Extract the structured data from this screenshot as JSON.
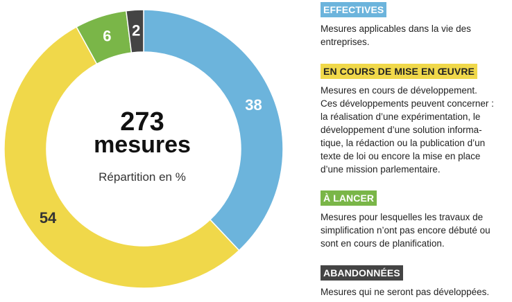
{
  "colors": {
    "effectives": "#6cb4dc",
    "en_cours": "#f0d84a",
    "a_lancer": "#7ab648",
    "abandonnees": "#444444"
  },
  "chart_data": {
    "type": "pie",
    "donut": true,
    "total": "273",
    "total_unit": "mesures",
    "caption": "Répartition en %",
    "slices": [
      {
        "label": "EFFECTIVES",
        "value": 38,
        "color": "#6cb4dc",
        "text_color": "#ffffff"
      },
      {
        "label": "EN COURS DE MISE EN ŒUVRE",
        "value": 54,
        "color": "#f0d84a",
        "text_color": "#333333"
      },
      {
        "label": "À LANCER",
        "value": 6,
        "color": "#7ab648",
        "text_color": "#ffffff"
      },
      {
        "label": "ABANDONNÉES",
        "value": 2,
        "color": "#444444",
        "text_color": "#ffffff"
      }
    ]
  },
  "legend": [
    {
      "tag": "EFFECTIVES",
      "description": "Mesures applicables dans la vie des\nentreprises."
    },
    {
      "tag": "EN COURS DE MISE EN ŒUVRE",
      "description": "Mesures en cours de développement.\nCes développements peuvent concerner :\nla réalisation d’une expérimentation, le\ndéveloppement d’une solution informa-\ntique, la rédaction ou la publication d’un\ntexte de loi ou encore la mise en place\nd’une mission parlementaire."
    },
    {
      "tag": "À LANCER",
      "description": "Mesures pour lesquelles les travaux de\nsimplification n’ont pas encore débuté ou\nsont en cours de planification."
    },
    {
      "tag": "ABANDONNÉES",
      "description": "Mesures qui ne seront pas développées."
    }
  ]
}
